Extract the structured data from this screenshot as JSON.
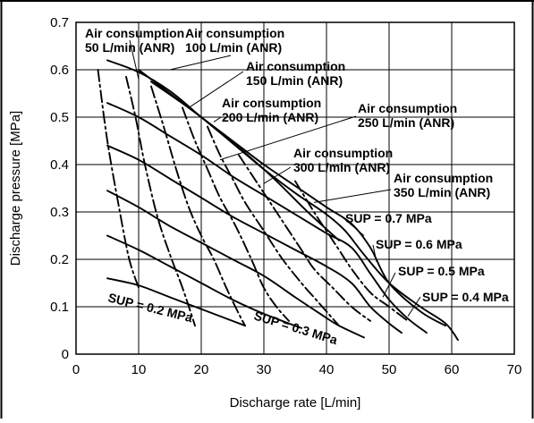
{
  "chart_data": {
    "type": "line",
    "title": "",
    "xlabel": "Discharge rate [L/min]",
    "ylabel": "Discharge pressure [MPa]",
    "xlim": [
      0,
      70
    ],
    "ylim": [
      0,
      0.7
    ],
    "x_ticks": [
      "0",
      "10",
      "20",
      "30",
      "40",
      "50",
      "60",
      "70"
    ],
    "y_ticks": [
      "0",
      "0.1",
      "0.2",
      "0.3",
      "0.4",
      "0.5",
      "0.6",
      "0.7"
    ],
    "grid": true,
    "series": [
      {
        "name": "SUP = 0.2 MPa",
        "style": "solid",
        "points": [
          [
            5,
            0.16
          ],
          [
            10,
            0.145
          ],
          [
            15,
            0.12
          ],
          [
            20,
            0.095
          ],
          [
            25,
            0.07
          ],
          [
            27,
            0.06
          ]
        ]
      },
      {
        "name": "",
        "style": "solid",
        "points": [
          [
            5,
            0.25
          ],
          [
            10,
            0.22
          ],
          [
            15,
            0.185
          ],
          [
            20,
            0.15
          ],
          [
            25,
            0.115
          ],
          [
            30,
            0.085
          ],
          [
            36,
            0.055
          ]
        ]
      },
      {
        "name": "SUP = 0.3 MPa",
        "style": "solid",
        "points": [
          [
            5,
            0.345
          ],
          [
            10,
            0.31
          ],
          [
            15,
            0.27
          ],
          [
            20,
            0.235
          ],
          [
            25,
            0.2
          ],
          [
            30,
            0.165
          ],
          [
            35,
            0.12
          ],
          [
            39,
            0.085
          ],
          [
            42,
            0.06
          ],
          [
            46,
            0.035
          ]
        ]
      },
      {
        "name": "",
        "style": "solid",
        "points": [
          [
            5,
            0.44
          ],
          [
            10,
            0.41
          ],
          [
            15,
            0.37
          ],
          [
            20,
            0.33
          ],
          [
            25,
            0.29
          ],
          [
            30,
            0.255
          ],
          [
            35,
            0.22
          ],
          [
            40,
            0.185
          ],
          [
            44,
            0.15
          ],
          [
            47,
            0.1
          ],
          [
            50,
            0.065
          ],
          [
            52,
            0.045
          ]
        ]
      },
      {
        "name": "SUP = 0.4 MPa",
        "style": "solid",
        "points": [
          [
            5,
            0.53
          ],
          [
            10,
            0.5
          ],
          [
            15,
            0.46
          ],
          [
            20,
            0.42
          ],
          [
            25,
            0.375
          ],
          [
            30,
            0.335
          ],
          [
            35,
            0.295
          ],
          [
            40,
            0.255
          ],
          [
            44,
            0.225
          ],
          [
            47,
            0.17
          ],
          [
            50,
            0.115
          ],
          [
            53,
            0.075
          ],
          [
            56,
            0.045
          ]
        ]
      },
      {
        "name": "SUP = 0.5 MPa",
        "style": "solid",
        "points": [
          [
            10,
            0.6
          ],
          [
            15,
            0.55
          ],
          [
            20,
            0.5
          ],
          [
            25,
            0.45
          ],
          [
            30,
            0.4
          ],
          [
            35,
            0.355
          ],
          [
            40,
            0.31
          ],
          [
            44,
            0.275
          ],
          [
            47,
            0.225
          ],
          [
            50,
            0.15
          ],
          [
            55,
            0.09
          ],
          [
            59,
            0.06
          ]
        ]
      },
      {
        "name": "SUP = 0.6 MPa",
        "style": "solid",
        "points": [
          [
            5,
            0.62
          ],
          [
            10,
            0.595
          ],
          [
            15,
            0.555
          ],
          [
            20,
            0.5
          ],
          [
            25,
            0.445
          ],
          [
            30,
            0.39
          ],
          [
            35,
            0.34
          ],
          [
            40,
            0.295
          ],
          [
            43,
            0.26
          ],
          [
            46,
            0.21
          ],
          [
            50,
            0.15
          ],
          [
            55,
            0.1
          ],
          [
            59,
            0.065
          ],
          [
            61,
            0.03
          ]
        ]
      },
      {
        "name": "SUP = 0.7 MPa",
        "style": "solid",
        "points": [
          [
            12,
            0.575
          ],
          [
            20,
            0.5
          ],
          [
            30,
            0.39
          ],
          [
            37,
            0.3
          ],
          [
            42,
            0.24
          ]
        ]
      },
      {
        "name": "Air consumption 50 L/min (ANR)",
        "style": "dashdot",
        "points": [
          [
            3.5,
            0.6
          ],
          [
            5,
            0.45
          ],
          [
            7,
            0.3
          ],
          [
            8.5,
            0.2
          ],
          [
            10,
            0.14
          ]
        ]
      },
      {
        "name": "Air consumption 100 L/min (ANR)",
        "style": "dashdot",
        "points": [
          [
            8,
            0.585
          ],
          [
            9.5,
            0.5
          ],
          [
            11,
            0.4
          ],
          [
            13,
            0.29
          ],
          [
            15,
            0.21
          ],
          [
            17,
            0.14
          ],
          [
            19,
            0.06
          ]
        ]
      },
      {
        "name": "Air consumption 150 L/min (ANR)",
        "style": "dashdot",
        "points": [
          [
            12,
            0.565
          ],
          [
            14,
            0.48
          ],
          [
            16,
            0.39
          ],
          [
            18,
            0.31
          ],
          [
            20,
            0.25
          ],
          [
            22,
            0.2
          ],
          [
            24,
            0.14
          ],
          [
            26,
            0.085
          ],
          [
            27,
            0.06
          ]
        ]
      },
      {
        "name": "Air consumption 200 L/min (ANR)",
        "style": "dashdot",
        "points": [
          [
            17,
            0.52
          ],
          [
            19,
            0.45
          ],
          [
            21,
            0.39
          ],
          [
            23,
            0.33
          ],
          [
            25.5,
            0.27
          ],
          [
            28,
            0.2
          ],
          [
            30,
            0.14
          ],
          [
            32,
            0.1
          ],
          [
            34,
            0.07
          ]
        ]
      },
      {
        "name": "Air consumption 250 L/min (ANR)",
        "style": "dashdot",
        "points": [
          [
            21,
            0.48
          ],
          [
            23,
            0.42
          ],
          [
            25,
            0.37
          ],
          [
            27,
            0.32
          ],
          [
            30,
            0.26
          ],
          [
            33,
            0.2
          ],
          [
            36,
            0.15
          ],
          [
            38,
            0.12
          ],
          [
            40,
            0.09
          ],
          [
            42,
            0.06
          ]
        ]
      },
      {
        "name": "Air consumption 300 L/min (ANR)",
        "style": "dashdot",
        "points": [
          [
            26,
            0.42
          ],
          [
            28,
            0.38
          ],
          [
            31,
            0.32
          ],
          [
            34,
            0.26
          ],
          [
            36,
            0.22
          ],
          [
            38,
            0.18
          ],
          [
            41,
            0.14
          ],
          [
            44,
            0.1
          ],
          [
            47,
            0.07
          ]
        ]
      },
      {
        "name": "Air consumption 350 L/min (ANR)",
        "style": "dashdot",
        "points": [
          [
            35,
            0.365
          ],
          [
            38,
            0.3
          ],
          [
            40,
            0.26
          ],
          [
            42,
            0.22
          ],
          [
            44,
            0.18
          ],
          [
            47,
            0.13
          ],
          [
            50,
            0.1
          ],
          [
            53,
            0.07
          ]
        ]
      }
    ],
    "annotations": [
      {
        "lines": [
          "Air consumption",
          "50 L/min (ANR)"
        ],
        "leader": [
          10,
          0.58
        ]
      },
      {
        "lines": [
          "Air consumption",
          "100 L/min (ANR)"
        ],
        "leader": [
          15,
          0.6
        ]
      },
      {
        "lines": [
          "Air consumption",
          "150 L/min (ANR)"
        ],
        "leader": [
          18,
          0.52
        ]
      },
      {
        "lines": [
          "Air consumption",
          "200 L/min (ANR)"
        ],
        "leader": [
          22,
          0.49
        ]
      },
      {
        "lines": [
          "Air consumption",
          "250 L/min (ANR)"
        ],
        "leader": [
          23,
          0.41
        ]
      },
      {
        "lines": [
          "Air consumption",
          "300 L/min (ANR)"
        ],
        "leader": [
          30,
          0.36
        ]
      },
      {
        "lines": [
          "Air consumption",
          "350 L/min (ANR)"
        ],
        "leader": [
          38,
          0.32
        ]
      },
      {
        "lines": [
          "SUP = 0.7 MPa"
        ],
        "leader": [
          46,
          0.25
        ]
      },
      {
        "lines": [
          "SUP = 0.6 MPa"
        ],
        "leader": [
          48,
          0.195
        ]
      },
      {
        "lines": [
          "SUP = 0.5 MPa"
        ],
        "leader": [
          49,
          0.12
        ]
      },
      {
        "lines": [
          "SUP = 0.4 MPa"
        ],
        "leader": [
          53,
          0.08
        ]
      },
      {
        "lines": [
          "SUP = 0.2 MPa"
        ],
        "leader": null
      },
      {
        "lines": [
          "SUP = 0.3 MPa"
        ],
        "leader": null
      }
    ]
  }
}
